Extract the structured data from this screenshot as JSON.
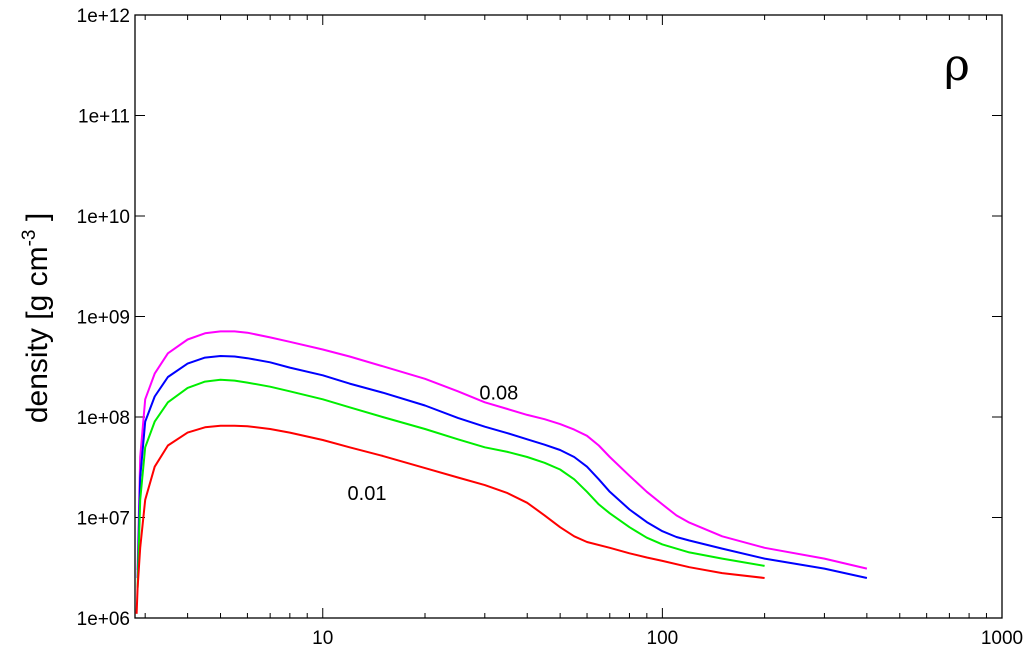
{
  "chart_data": {
    "type": "line",
    "xscale": "log",
    "yscale": "log",
    "xlim": [
      2.8,
      1000
    ],
    "ylim": [
      1000000,
      1000000000000
    ],
    "x_ticks": [
      10,
      100,
      1000
    ],
    "x_tick_labels": [
      "10",
      "100",
      "1000"
    ],
    "y_ticks": [
      1000000,
      10000000,
      100000000,
      1000000000,
      10000000000,
      100000000000,
      1000000000000
    ],
    "y_tick_labels": [
      "1e+06",
      "1e+07",
      "1e+08",
      "1e+09",
      "1e+10",
      "1e+11",
      "1e+12"
    ],
    "ylabel": {
      "main": "density [g cm",
      "sup": "-3",
      "close": " ]"
    },
    "corner_label": "ρ",
    "annotations": [
      {
        "text": "0.08",
        "x": 33,
        "y": 150000000
      },
      {
        "text": "0.01",
        "x": 13.5,
        "y": 15000000
      }
    ],
    "grid": false,
    "series": [
      {
        "color": "#ff00ff",
        "x": [
          2.85,
          2.9,
          3,
          3.2,
          3.5,
          4,
          4.5,
          5,
          5.5,
          6,
          7,
          8,
          10,
          12,
          15,
          20,
          25,
          30,
          35,
          40,
          45,
          50,
          55,
          60,
          65,
          70,
          80,
          90,
          100,
          110,
          120,
          150,
          200,
          300,
          400
        ],
        "y": [
          3000000,
          40000000,
          150000000,
          270000000,
          430000000,
          590000000,
          680000000,
          710000000,
          710000000,
          690000000,
          620000000,
          560000000,
          470000000,
          400000000,
          320000000,
          240000000,
          180000000,
          140000000,
          120000000,
          105000000,
          95000000,
          85000000,
          75000000,
          65000000,
          52000000,
          40000000,
          26000000,
          18000000,
          13500000,
          10500000,
          8900000,
          6500000,
          5000000,
          3900000,
          3100000
        ]
      },
      {
        "color": "#0000ff",
        "x": [
          2.85,
          2.9,
          3,
          3.2,
          3.5,
          4,
          4.5,
          5,
          5.5,
          6,
          7,
          8,
          10,
          12,
          15,
          20,
          25,
          30,
          35,
          40,
          45,
          50,
          55,
          60,
          65,
          70,
          80,
          90,
          100,
          110,
          120,
          150,
          200,
          300,
          400
        ],
        "y": [
          2500000,
          25000000,
          90000000,
          160000000,
          250000000,
          340000000,
          390000000,
          405000000,
          400000000,
          385000000,
          350000000,
          310000000,
          260000000,
          215000000,
          175000000,
          130000000,
          98000000,
          80000000,
          69000000,
          60000000,
          53000000,
          47000000,
          40000000,
          32000000,
          24000000,
          18000000,
          12000000,
          9000000,
          7300000,
          6400000,
          5900000,
          4900000,
          3900000,
          3100000,
          2500000
        ]
      },
      {
        "color": "#00ee00",
        "x": [
          2.85,
          2.9,
          3,
          3.2,
          3.5,
          4,
          4.5,
          5,
          5.5,
          6,
          7,
          8,
          10,
          12,
          15,
          20,
          25,
          30,
          35,
          40,
          45,
          50,
          55,
          60,
          65,
          70,
          80,
          90,
          100,
          120,
          150,
          200
        ],
        "y": [
          2000000,
          15000000,
          50000000,
          90000000,
          140000000,
          195000000,
          225000000,
          235000000,
          230000000,
          220000000,
          200000000,
          180000000,
          150000000,
          125000000,
          100000000,
          76000000,
          60000000,
          50000000,
          45000000,
          40000000,
          35000000,
          30000000,
          24000000,
          18000000,
          13500000,
          11000000,
          8000000,
          6300000,
          5400000,
          4500000,
          3900000,
          3300000
        ]
      },
      {
        "color": "#ff0000",
        "x": [
          2.83,
          2.85,
          2.9,
          3,
          3.2,
          3.5,
          4,
          4.5,
          5,
          5.5,
          6,
          7,
          8,
          10,
          12,
          15,
          20,
          25,
          30,
          35,
          40,
          45,
          50,
          55,
          60,
          70,
          80,
          90,
          100,
          120,
          150,
          200
        ],
        "y": [
          1100000,
          2000000,
          5000000,
          15000000,
          32000000,
          52000000,
          70000000,
          79000000,
          82000000,
          82000000,
          81000000,
          76000000,
          70000000,
          59000000,
          50000000,
          41000000,
          31000000,
          25000000,
          21000000,
          17500000,
          14000000,
          10500000,
          8000000,
          6500000,
          5700000,
          5000000,
          4400000,
          4000000,
          3700000,
          3200000,
          2800000,
          2500000
        ]
      }
    ]
  }
}
